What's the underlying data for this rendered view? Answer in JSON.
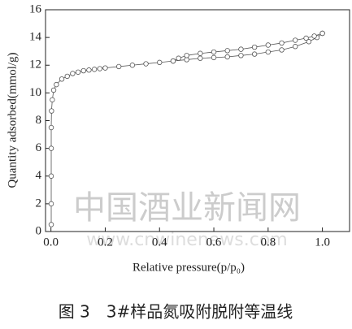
{
  "chart_data": {
    "type": "line",
    "ylabel": "Quantity adsorbed(mmol/g)",
    "xlabel": "Relative pressure(p/p₀)",
    "caption": "图 3　3#样品氮吸附脱附等温线",
    "watermark": "中国酒业新闻网",
    "watermark_url": "www.cnwinenews.com",
    "xlim": [
      -0.02,
      1.1
    ],
    "ylim": [
      0,
      16
    ],
    "xticks": [
      {
        "value": 0,
        "label": "0.0"
      },
      0.2,
      0.4,
      0.6,
      0.8,
      {
        "value": 1,
        "label": "1.0"
      }
    ],
    "yticks": [
      0,
      2,
      4,
      6,
      8,
      10,
      12,
      14,
      16
    ],
    "series": [
      {
        "color": "#555555",
        "x": [
          0.001,
          0.001,
          0.001,
          0.001,
          0.001,
          0.002,
          0.005,
          0.01,
          0.02,
          0.04,
          0.06,
          0.08,
          0.1,
          0.12,
          0.14,
          0.16,
          0.18,
          0.2,
          0.25,
          0.3,
          0.35,
          0.4,
          0.45,
          0.5,
          0.55,
          0.6,
          0.65,
          0.7,
          0.75,
          0.8,
          0.85,
          0.9,
          0.95,
          0.98,
          1.0
        ],
        "values": [
          0.5,
          2,
          4,
          6,
          7.5,
          8.7,
          9.5,
          10.2,
          10.6,
          11.0,
          11.2,
          11.4,
          11.5,
          11.6,
          11.65,
          11.7,
          11.75,
          11.8,
          11.9,
          12.0,
          12.1,
          12.2,
          12.3,
          12.4,
          12.5,
          12.55,
          12.6,
          12.7,
          12.8,
          12.95,
          13.1,
          13.35,
          13.7,
          14.0,
          14.3
        ]
      },
      {
        "color": "#555555",
        "x": [
          1.0,
          0.97,
          0.94,
          0.9,
          0.85,
          0.8,
          0.75,
          0.7,
          0.65,
          0.6,
          0.55,
          0.5,
          0.47,
          0.45
        ],
        "values": [
          14.3,
          14.1,
          13.95,
          13.8,
          13.6,
          13.45,
          13.3,
          13.15,
          13.05,
          12.95,
          12.85,
          12.7,
          12.5,
          12.3
        ]
      }
    ]
  }
}
